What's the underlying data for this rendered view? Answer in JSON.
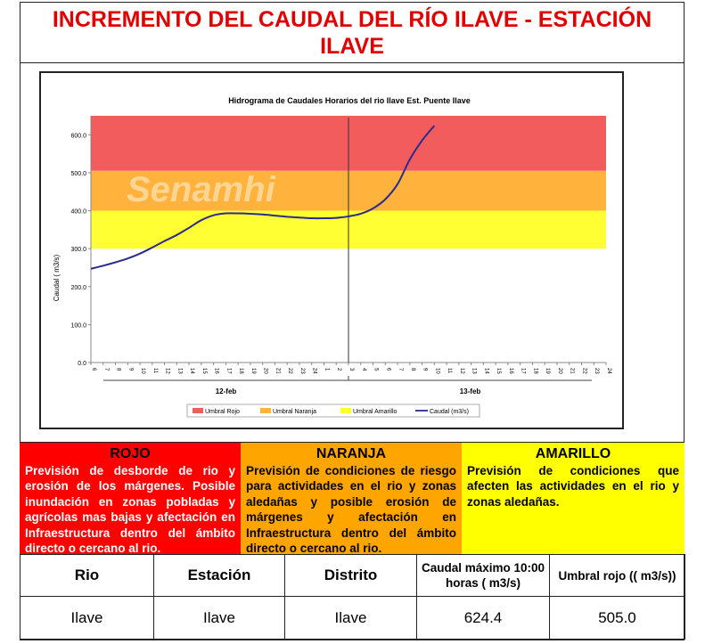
{
  "title": "INCREMENTO DEL CAUDAL DEL RÍO ILAVE - ESTACIÓN ILAVE",
  "watermark": "Senamhi",
  "chart_data": {
    "type": "line",
    "title": "Hidrograma de Caudales Horarios del rio Ilave Est. Puente  Ilave",
    "ylabel": "Caudal ( m3/s)",
    "ylim": [
      0,
      650
    ],
    "yticks": [
      "0.0",
      "100.0",
      "200.0",
      "300.0",
      "400.0",
      "500.0",
      "600.0"
    ],
    "x_tick_labels": [
      "6",
      "7",
      "8",
      "9",
      "10",
      "11",
      "12",
      "13",
      "14",
      "15",
      "16",
      "17",
      "18",
      "19",
      "20",
      "21",
      "22",
      "23",
      "24",
      "1",
      "2",
      "3",
      "4",
      "5",
      "6",
      "7",
      "8",
      "9",
      "10",
      "11",
      "12",
      "13",
      "14",
      "15",
      "16",
      "17",
      "18",
      "19",
      "20",
      "21",
      "22",
      "23",
      "24"
    ],
    "day_labels": [
      "12-feb",
      "13-feb"
    ],
    "bands": [
      {
        "name": "Umbral Rojo",
        "from": 505,
        "to": 650,
        "color": "#f25c5c"
      },
      {
        "name": "Umbral Naranja",
        "from": 400,
        "to": 505,
        "color": "#ffb23c"
      },
      {
        "name": "Umbral Amarillo",
        "from": 300,
        "to": 400,
        "color": "#ffff33"
      }
    ],
    "series": [
      {
        "name": "Caudal (m3/s)",
        "color": "#2b2b8f",
        "x": [
          0,
          1,
          2,
          3,
          4,
          5,
          6,
          7,
          8,
          9,
          10,
          11,
          12,
          13,
          14,
          15,
          16,
          17,
          18,
          19,
          20,
          21,
          22,
          23,
          24,
          25,
          26,
          27,
          28
        ],
        "y": [
          247,
          255,
          264,
          274,
          287,
          303,
          320,
          336,
          355,
          375,
          388,
          393,
          393,
          392,
          390,
          387,
          384,
          382,
          380,
          380,
          381,
          385,
          392,
          406,
          430,
          470,
          535,
          585,
          624
        ]
      }
    ],
    "legend": [
      "Umbral Rojo",
      "Umbral Naranja",
      "Umbral Amarillo",
      "Caudal (m3/s)"
    ],
    "legend_position": "bottom",
    "grid": false
  },
  "levels": {
    "rojo": {
      "label": "ROJO",
      "text": "Previsión de desborde de rio y erosión de los márgenes. Posible inundación en zonas pobladas y agrícolas mas bajas y afectación en Infraestructura dentro del ámbito directo o cercano al rio."
    },
    "naranja": {
      "label": "NARANJA",
      "text": "Previsión de condiciones de riesgo para actividades en el rio y zonas aledañas y posible erosión de márgenes  y afectación en Infraestructura dentro del ámbito directo o cercano al rio."
    },
    "amarillo": {
      "label": "AMARILLO",
      "text": "Previsión de condiciones que afecten las actividades en el rio y zonas aledañas."
    }
  },
  "table": {
    "headers": [
      "Rio",
      "Estación",
      "Distrito",
      "Caudal máximo 10:00 horas ( m3/s)",
      "Umbral rojo (( m3/s))"
    ],
    "row": [
      "Ilave",
      "Ilave",
      "Ilave",
      "624.4",
      "505.0"
    ]
  }
}
